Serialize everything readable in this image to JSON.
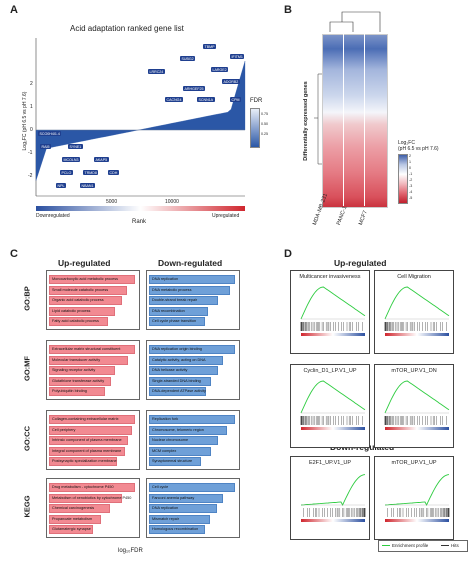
{
  "panels": {
    "a": "A",
    "b": "B",
    "c": "C",
    "d": "D"
  },
  "panelA": {
    "title": "Acid adaptation ranked gene list",
    "ylabel": "Log₂FC (pH 6.5 vs pH 7.6)",
    "xlabel": "Rank",
    "yticks": [
      "2",
      "1",
      "0",
      "-1",
      "-2"
    ],
    "xticks": [
      "5000",
      "10000"
    ],
    "fdr_label": "FDR",
    "fdr_ticks": [
      "0.75",
      "0.50",
      "0.25"
    ],
    "down_label": "Downregulated",
    "up_label": "Upregulated",
    "genes_up": [
      "TBMP",
      "SUBG2",
      "IFITM1",
      "LRRC24",
      "LARGE2",
      "ADORB2",
      "ARHGEF25",
      "CACNG4",
      "SCNN1A",
      "CPM",
      "LINC00113"
    ],
    "genes_down": [
      "SCO0H4I1.4",
      "RAI5",
      "SYNE1",
      "MCOLN3",
      "AKAP5",
      "PCLO",
      "TRMD8",
      "CDH",
      "NPL",
      "NBAN1"
    ]
  },
  "panelB": {
    "ylabel": "Differentially expressed genes",
    "columns": [
      "MDA-MB-231",
      "PANC-1",
      "MCF7"
    ],
    "legend_title": "Log₂FC\n(pH 6.5 vs pH 7.6)",
    "legend_ticks": [
      "2",
      "1",
      "0",
      "-1",
      "-2",
      "-3",
      "-4",
      "-5"
    ]
  },
  "panelC": {
    "up_header": "Up-regulated",
    "down_header": "Down-regulated",
    "xlabel": "log₁₀FDR",
    "sections": [
      {
        "label": "GO:BP",
        "up": [
          "Monocarboxylic acid metabolic process",
          "Small molecule catabolic process",
          "Organic acid catabolic process",
          "Lipid catabolic process",
          "Fatty acid catabolic process"
        ],
        "down": [
          "DNA replication",
          "DNA metabolic process",
          "Double-strand break repair",
          "DNA recombination",
          "Cell cycle phase transition"
        ]
      },
      {
        "label": "GO:MF",
        "up": [
          "Extracellular matrix structural constituent",
          "Molecular transducer activity",
          "Signaling receptor activity",
          "Glutathione transferase activity",
          "Polyubiquitin binding"
        ],
        "down": [
          "DNA replication origin binding",
          "Catalytic activity, acting on DNA",
          "DNA helicase activity",
          "Single-stranded DNA binding",
          "DNA-dependent ATPase activity"
        ]
      },
      {
        "label": "GO:CC",
        "up": [
          "Collagen-containing extracellular matrix",
          "Cell periphery",
          "Intrinsic component of plasma membrane",
          "Integral component of plasma membrane",
          "Postsynaptic specialization membrane"
        ],
        "down": [
          "Replication fork",
          "Chromosome, telomeric region",
          "Nuclear chromosome",
          "MCM complex",
          "Synaptonemal structure"
        ]
      },
      {
        "label": "KEGG",
        "up": [
          "Drug metabolism - cytochrome P450",
          "Metabolism of xenobiotics by cytochrome P450",
          "Chemical carcinogenesis",
          "Propanoate metabolism",
          "Glutamatergic synapse"
        ],
        "down": [
          "Cell cycle",
          "Fanconi anemia pathway",
          "DNA replication",
          "Mismatch repair",
          "Homologous recombination"
        ]
      }
    ],
    "up_values": [
      [
        5.0,
        4.5,
        4.2,
        3.8,
        3.4
      ],
      [
        5.0,
        4.6,
        3.8,
        3.6,
        3.2
      ],
      [
        5.0,
        4.8,
        4.6,
        4.4,
        3.9
      ],
      [
        5.0,
        4.2,
        3.5,
        3.0,
        2.5
      ]
    ],
    "down_values": [
      [
        5.0,
        4.7,
        4.0,
        3.4,
        3.2
      ],
      [
        5.0,
        4.3,
        4.0,
        3.6,
        3.3
      ],
      [
        5.0,
        4.5,
        4.0,
        3.6,
        3.0
      ],
      [
        5.0,
        4.3,
        3.9,
        3.5,
        3.2
      ]
    ]
  },
  "panelD": {
    "up_header": "Up-regulated",
    "down_header": "Down-regulated",
    "plots": [
      {
        "title": "Multicancer invasiveness",
        "shape": "up"
      },
      {
        "title": "Cell Migration",
        "shape": "up"
      },
      {
        "title": "Cyclin_D1_LP.V1_UP",
        "shape": "up"
      },
      {
        "title": "mTOR_UP.V1_DN",
        "shape": "up"
      },
      {
        "title": "E2F1_UP.V1_UP",
        "shape": "down"
      },
      {
        "title": "mTOR_UP.V1_UP",
        "shape": "down"
      }
    ],
    "legend_profile": "Enrichment profile",
    "legend_hits": "Hits"
  },
  "colors": {
    "navy": "#1f3f8f",
    "red_bar": "#f28a92",
    "blue_bar": "#6fa0d8",
    "green_line": "#2ecc40"
  }
}
